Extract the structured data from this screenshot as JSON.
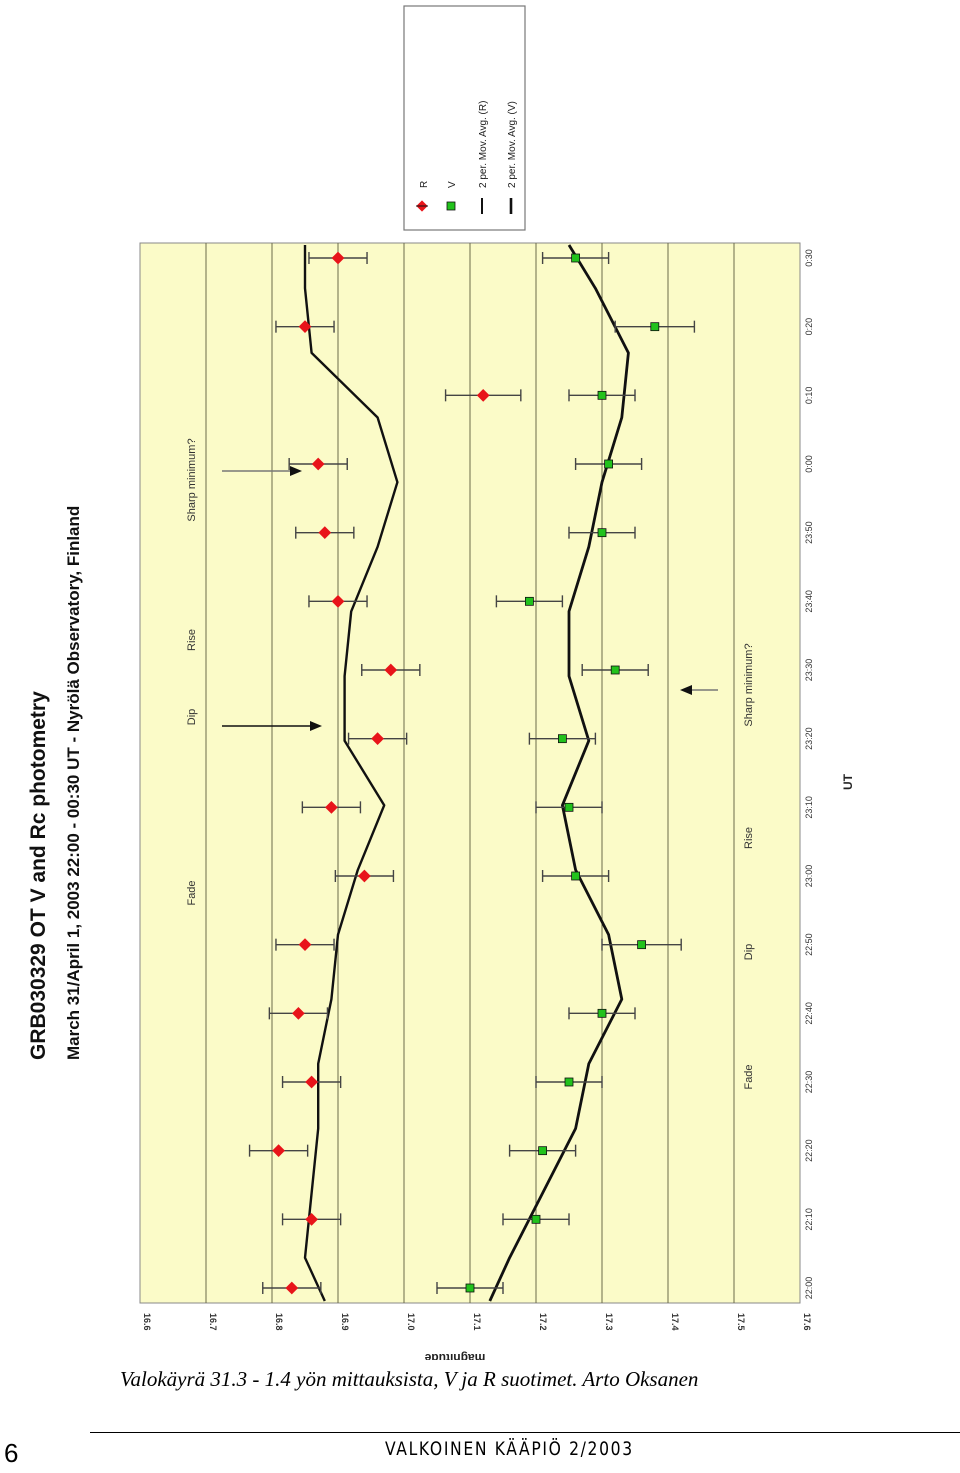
{
  "chart_data": {
    "type": "scatter",
    "title": "GRB030329 OT V and Rc photometry",
    "subtitle": "March 31/April 1, 2003 22:00 - 00:30 UT - Nyrölä Observatory, Finland",
    "xlabel": "UT",
    "ylabel": "magnitude",
    "x_ticks": [
      "22:00",
      "22:10",
      "22:20",
      "22:30",
      "22:40",
      "22:50",
      "23:00",
      "23:10",
      "23:20",
      "23:30",
      "23:40",
      "23:50",
      "0:00",
      "0:10",
      "0:20",
      "0:30"
    ],
    "y_ticks": [
      "16.6",
      "16.7",
      "16.8",
      "16.9",
      "17.0",
      "17.1",
      "17.2",
      "17.3",
      "17.4",
      "17.5",
      "17.6"
    ],
    "ylim": [
      16.6,
      17.6
    ],
    "y_inverted": true,
    "grid": true,
    "legend_position": "top-right",
    "legend": [
      "R",
      "V",
      "2 per. Mov. Avg. (R)",
      "2 per. Mov. Avg. (V)"
    ],
    "phase_labels": {
      "R": [
        "Fade",
        "Dip",
        "Rise",
        "Sharp minimum?"
      ],
      "V": [
        "Fade",
        "Dip",
        "Rise",
        "Sharp minimum?"
      ]
    },
    "series": [
      {
        "name": "R",
        "color": "#e8141a",
        "marker": "diamond",
        "times": [
          "22:00",
          "22:10",
          "22:20",
          "22:30",
          "22:40",
          "22:50",
          "22:60",
          "23:10",
          "23:20",
          "23:30",
          "23:40",
          "23:50",
          "0:00",
          "0:10",
          "0:20",
          "0:30"
        ],
        "x_min": [
          0,
          10,
          20,
          30,
          40,
          50,
          60,
          70,
          80,
          90,
          100,
          110,
          120,
          130,
          140,
          150
        ],
        "y": [
          16.83,
          16.86,
          16.81,
          16.86,
          16.84,
          16.85,
          16.94,
          16.89,
          16.96,
          16.98,
          16.9,
          16.88,
          16.87,
          17.12,
          16.85,
          16.9
        ],
        "err": [
          0.044,
          0.044,
          0.044,
          0.044,
          0.044,
          0.044,
          0.044,
          0.044,
          0.044,
          0.044,
          0.044,
          0.044,
          0.044,
          0.057,
          0.044,
          0.044
        ]
      },
      {
        "name": "V",
        "color": "#22c21c",
        "marker": "square",
        "x_min": [
          0,
          10,
          20,
          30,
          40,
          50,
          60,
          70,
          80,
          90,
          100,
          110,
          120,
          130,
          140,
          150
        ],
        "y": [
          17.1,
          17.2,
          17.21,
          17.25,
          17.3,
          17.36,
          17.26,
          17.25,
          17.24,
          17.32,
          17.19,
          17.3,
          17.31,
          17.3,
          17.38,
          17.26
        ],
        "err": [
          0.05,
          0.05,
          0.05,
          0.05,
          0.05,
          0.06,
          0.05,
          0.05,
          0.05,
          0.05,
          0.05,
          0.05,
          0.05,
          0.05,
          0.06,
          0.05
        ]
      }
    ],
    "mov_avg": {
      "R": [
        16.88,
        16.85,
        16.86,
        16.87,
        16.87,
        16.89,
        16.9,
        16.93,
        16.97,
        16.91,
        16.91,
        16.92,
        16.96,
        16.99,
        16.96,
        16.86,
        16.85,
        16.85
      ],
      "V": [
        17.13,
        17.16,
        17.21,
        17.26,
        17.28,
        17.33,
        17.31,
        17.26,
        17.24,
        17.28,
        17.25,
        17.25,
        17.28,
        17.3,
        17.33,
        17.34,
        17.29,
        17.25
      ]
    }
  },
  "caption": "Valokäyrä 31.3 - 1.4 yön mittauksista, V ja R suotimet. Arto Oksanen",
  "footer": {
    "page_number": "6",
    "magazine": "VALKOINEN KÄÄPIÖ 2/2003"
  }
}
